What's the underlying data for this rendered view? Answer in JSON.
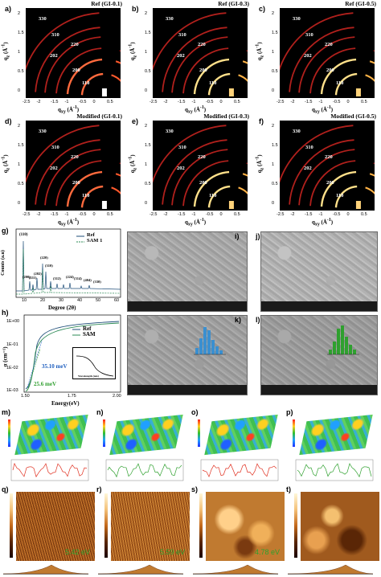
{
  "panels_giwaxs": [
    {
      "letter": "a)",
      "title": "Ref (GI-0.1)",
      "bright": false
    },
    {
      "letter": "b)",
      "title": "Ref (GI-0.3)",
      "bright": true
    },
    {
      "letter": "c)",
      "title": "Ref (GI-0.5)",
      "bright": true
    },
    {
      "letter": "d)",
      "title": "Modified (GI-0.1)",
      "bright": false
    },
    {
      "letter": "e)",
      "title": "Modified (GI-0.3)",
      "bright": true
    },
    {
      "letter": "f)",
      "title": "Modified (GI-0.5)",
      "bright": true
    }
  ],
  "giwaxs_ring_labels": [
    "330",
    "310",
    "220",
    "202",
    "200",
    "110"
  ],
  "giwaxs_xticks": [
    "-2.5",
    "-2",
    "-1.5",
    "-1",
    "-0.5",
    "0",
    "0.5"
  ],
  "giwaxs_yticks": [
    "2",
    "1.5",
    "1",
    "0.5",
    "0"
  ],
  "giwaxs_xlabel": "q",
  "giwaxs_xlabel_sub": "xy",
  "giwaxs_xlabel_unit": "(Å",
  "giwaxs_xlabel_exp": "-1",
  "giwaxs_xlabel_close": ")",
  "giwaxs_ylabel": "q",
  "giwaxs_ylabel_sub": "z",
  "giwaxs_ylabel_unit": "(Å",
  "giwaxs_ylabel_exp": "-1",
  "giwaxs_ylabel_close": ")",
  "xrd": {
    "letter": "g)",
    "ylabel": "Counts (a.u)",
    "xlabel": "Degree (2θ)",
    "legend": [
      "Ref",
      "SAM 1"
    ],
    "xticks": [
      "10",
      "20",
      "30",
      "40",
      "50",
      "60"
    ],
    "peaks": [
      "(110)",
      "(200)",
      "(211)",
      "(202)",
      "(220)",
      "(310)",
      "(312)",
      "(224)",
      "(314)",
      "(404)",
      "(330)"
    ]
  },
  "absorption": {
    "letter": "h)",
    "ylabel": "α (cm⁻¹)",
    "xlabel": "Energy(eV)",
    "yticks": [
      "1E+00",
      "1E-01",
      "1E-02",
      "1E-03"
    ],
    "xticks": [
      "1.50",
      "1.75",
      "2.00"
    ],
    "legend": [
      "Ref",
      "SAM"
    ],
    "annot1": "35.10 meV",
    "annot2": "25.6 meV",
    "inset_xlabel": "Wavelength (nm)"
  },
  "sem_panels": [
    "i)",
    "j)",
    "k)",
    "l)"
  ],
  "afm3d_panels": [
    "m)",
    "n)",
    "o)",
    "p)"
  ],
  "afm2d_panels": [
    {
      "letter": "q)",
      "value": "5.42 eV"
    },
    {
      "letter": "r)",
      "value": "5.59 eV"
    },
    {
      "letter": "s)",
      "value": "4.78 eV"
    },
    {
      "letter": "t)",
      "value": ""
    }
  ],
  "colors": {
    "ref_line": "#1f4e79",
    "sam_line": "#2e8b57",
    "sem_hist_k": "#3a8fd0",
    "sem_hist_l": "#2ea02e",
    "annot_blue": "#1f5fbf",
    "annot_green": "#2e9e2e",
    "kpfm_text": "#2ea02e"
  }
}
